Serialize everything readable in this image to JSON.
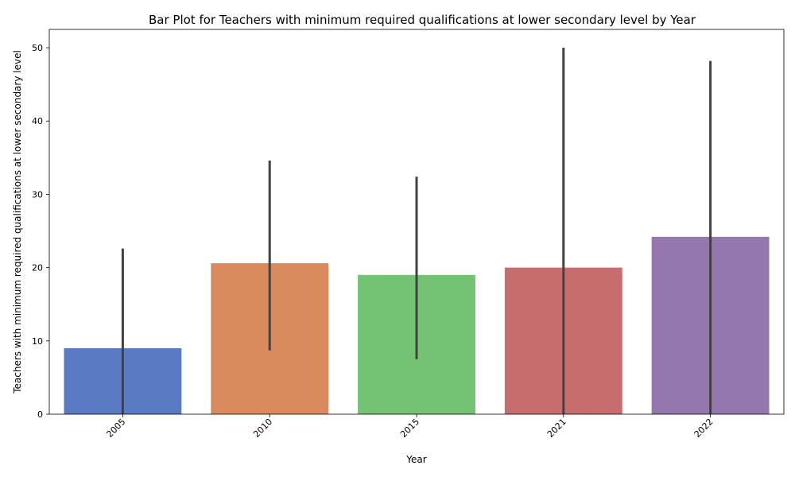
{
  "chart_data": {
    "type": "bar",
    "title": "Bar Plot for Teachers with minimum required qualifications at lower secondary level by Year",
    "xlabel": "Year",
    "ylabel": "Teachers with minimum required qualifications at lower secondary level",
    "categories": [
      "2005",
      "2010",
      "2015",
      "2021",
      "2022"
    ],
    "values": [
      9.0,
      20.6,
      19.0,
      20.0,
      24.2
    ],
    "error_low": [
      0.0,
      8.7,
      7.5,
      0.0,
      0.0
    ],
    "error_high": [
      22.6,
      34.6,
      32.4,
      50.0,
      48.2
    ],
    "colors": [
      "#5a7bc4",
      "#d98b5d",
      "#74c274",
      "#c76d6d",
      "#9377ad"
    ],
    "ylim": [
      0,
      52.5
    ],
    "yticks": [
      0,
      10,
      20,
      30,
      40,
      50
    ],
    "grid": false,
    "legend": "none"
  }
}
